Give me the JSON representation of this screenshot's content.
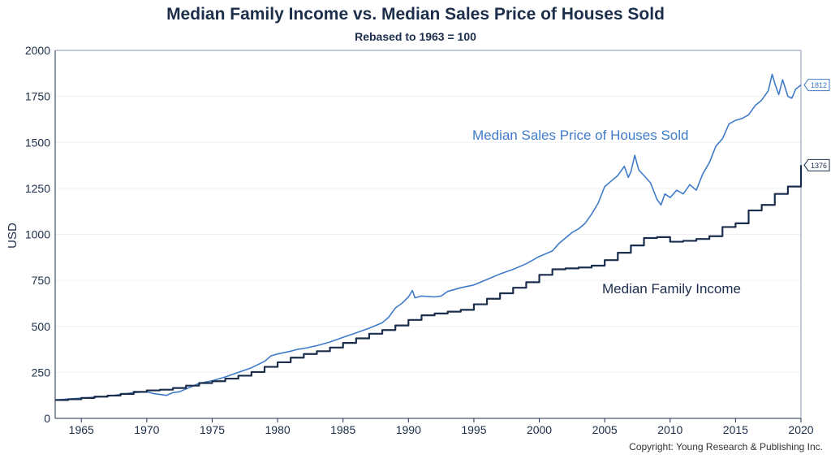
{
  "title": "Median Family Income vs. Median Sales Price of Houses Sold",
  "subtitle": "Rebased to 1963 = 100",
  "copyright": "Copyright: Young Research & Publishing Inc.",
  "chart_data": {
    "type": "line",
    "title": "Median Family Income vs. Median Sales Price of Houses Sold",
    "subtitle": "Rebased to 1963 = 100",
    "xlabel": "",
    "ylabel": "USD",
    "xlim": [
      1963,
      2020
    ],
    "ylim": [
      0,
      2000
    ],
    "xticks": [
      1965,
      1970,
      1975,
      1980,
      1985,
      1990,
      1995,
      2000,
      2005,
      2010,
      2015,
      2020
    ],
    "yticks": [
      0,
      250,
      500,
      750,
      1000,
      1250,
      1500,
      1750,
      2000
    ],
    "grid": true,
    "colors": {
      "house": "#3f7bc9",
      "income": "#1b2d4d",
      "axis": "#1c2e4a",
      "grid": "#f0f0f0"
    },
    "series": [
      {
        "name": "Median Sales Price of Houses Sold",
        "color": "#3f7bc9",
        "end_label": "1812",
        "x": [
          1963.0,
          1964.0,
          1965.0,
          1966.0,
          1967.0,
          1968.0,
          1969.0,
          1970.0,
          1970.5,
          1971.0,
          1971.5,
          1972.0,
          1972.5,
          1973.0,
          1973.5,
          1974.0,
          1975.0,
          1976.0,
          1977.0,
          1978.0,
          1979.0,
          1979.5,
          1980.0,
          1981.0,
          1981.5,
          1982.0,
          1983.0,
          1984.0,
          1985.0,
          1986.0,
          1987.0,
          1988.0,
          1988.5,
          1989.0,
          1989.5,
          1990.0,
          1990.3,
          1990.5,
          1991.0,
          1992.0,
          1992.5,
          1993.0,
          1994.0,
          1995.0,
          1995.5,
          1996.0,
          1997.0,
          1998.0,
          1999.0,
          2000.0,
          2001.0,
          2001.5,
          2002.0,
          2002.5,
          2003.0,
          2003.5,
          2004.0,
          2004.5,
          2005.0,
          2005.5,
          2006.0,
          2006.5,
          2006.8,
          2007.0,
          2007.3,
          2007.6,
          2008.0,
          2008.5,
          2009.0,
          2009.3,
          2009.6,
          2010.0,
          2010.5,
          2011.0,
          2011.5,
          2012.0,
          2012.5,
          2013.0,
          2013.5,
          2014.0,
          2014.5,
          2015.0,
          2015.5,
          2016.0,
          2016.5,
          2017.0,
          2017.5,
          2017.8,
          2018.0,
          2018.3,
          2018.6,
          2019.0,
          2019.3,
          2019.6,
          2020.0
        ],
        "y": [
          100,
          105,
          110,
          115,
          120,
          130,
          140,
          145,
          135,
          130,
          125,
          140,
          145,
          160,
          175,
          190,
          205,
          225,
          250,
          275,
          310,
          340,
          350,
          365,
          375,
          380,
          395,
          415,
          440,
          465,
          490,
          520,
          550,
          600,
          625,
          660,
          695,
          655,
          665,
          660,
          665,
          690,
          710,
          725,
          740,
          755,
          785,
          810,
          840,
          880,
          910,
          950,
          980,
          1010,
          1030,
          1060,
          1110,
          1170,
          1260,
          1290,
          1320,
          1370,
          1310,
          1340,
          1430,
          1350,
          1320,
          1280,
          1190,
          1160,
          1220,
          1200,
          1240,
          1220,
          1270,
          1240,
          1330,
          1390,
          1480,
          1520,
          1600,
          1620,
          1630,
          1650,
          1700,
          1730,
          1780,
          1870,
          1820,
          1760,
          1840,
          1750,
          1740,
          1790,
          1812
        ]
      },
      {
        "name": "Median Family Income",
        "color": "#1b2d4d",
        "end_label": "1376",
        "x": [
          1963,
          1964,
          1965,
          1966,
          1967,
          1968,
          1969,
          1970,
          1971,
          1972,
          1973,
          1974,
          1975,
          1976,
          1977,
          1978,
          1979,
          1980,
          1981,
          1982,
          1983,
          1984,
          1985,
          1986,
          1987,
          1988,
          1989,
          1990,
          1991,
          1992,
          1993,
          1994,
          1995,
          1996,
          1997,
          1998,
          1999,
          2000,
          2001,
          2002,
          2003,
          2004,
          2005,
          2006,
          2007,
          2008,
          2009,
          2010,
          2011,
          2012,
          2013,
          2014,
          2015,
          2016,
          2017,
          2018,
          2019,
          2020
        ],
        "y": [
          100,
          104,
          111,
          118,
          124,
          133,
          144,
          152,
          156,
          165,
          178,
          192,
          202,
          216,
          232,
          252,
          280,
          305,
          330,
          350,
          365,
          385,
          410,
          435,
          460,
          480,
          505,
          535,
          560,
          570,
          580,
          590,
          620,
          650,
          680,
          710,
          740,
          780,
          810,
          815,
          820,
          830,
          860,
          900,
          940,
          980,
          985,
          960,
          965,
          975,
          990,
          1040,
          1060,
          1130,
          1160,
          1220,
          1260,
          1376
        ]
      }
    ],
    "annotations": [
      {
        "text": "Median Sales Price of Houses Sold",
        "series": 0
      },
      {
        "text": "Median Family Income",
        "series": 1
      }
    ]
  }
}
